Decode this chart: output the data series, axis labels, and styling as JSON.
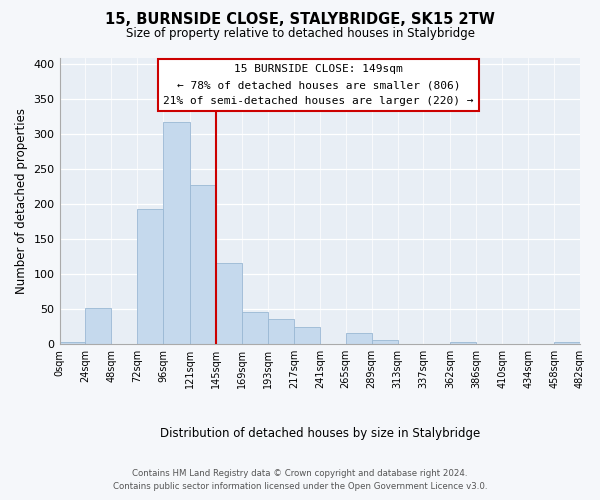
{
  "title": "15, BURNSIDE CLOSE, STALYBRIDGE, SK15 2TW",
  "subtitle": "Size of property relative to detached houses in Stalybridge",
  "xlabel": "Distribution of detached houses by size in Stalybridge",
  "ylabel": "Number of detached properties",
  "bar_color": "#c5d9ed",
  "bar_edge_color": "#9ab8d4",
  "plot_bg_color": "#e8eef5",
  "fig_bg_color": "#f5f7fa",
  "annotation_box_color": "#ffffff",
  "annotation_border_color": "#cc0000",
  "vline_color": "#cc0000",
  "vline_x": 145,
  "annotation_title": "15 BURNSIDE CLOSE: 149sqm",
  "annotation_line1": "← 78% of detached houses are smaller (806)",
  "annotation_line2": "21% of semi-detached houses are larger (220) →",
  "bin_edges": [
    0,
    24,
    48,
    72,
    96,
    121,
    145,
    169,
    193,
    217,
    241,
    265,
    289,
    313,
    337,
    362,
    386,
    410,
    434,
    458,
    482
  ],
  "bin_counts": [
    2,
    51,
    0,
    193,
    318,
    228,
    116,
    46,
    35,
    24,
    0,
    15,
    6,
    0,
    0,
    3,
    0,
    0,
    0,
    2
  ],
  "tick_labels": [
    "0sqm",
    "24sqm",
    "48sqm",
    "72sqm",
    "96sqm",
    "121sqm",
    "145sqm",
    "169sqm",
    "193sqm",
    "217sqm",
    "241sqm",
    "265sqm",
    "289sqm",
    "313sqm",
    "337sqm",
    "362sqm",
    "386sqm",
    "410sqm",
    "434sqm",
    "458sqm",
    "482sqm"
  ],
  "ylim": [
    0,
    410
  ],
  "yticks": [
    0,
    50,
    100,
    150,
    200,
    250,
    300,
    350,
    400
  ],
  "footer_line1": "Contains HM Land Registry data © Crown copyright and database right 2024.",
  "footer_line2": "Contains public sector information licensed under the Open Government Licence v3.0."
}
